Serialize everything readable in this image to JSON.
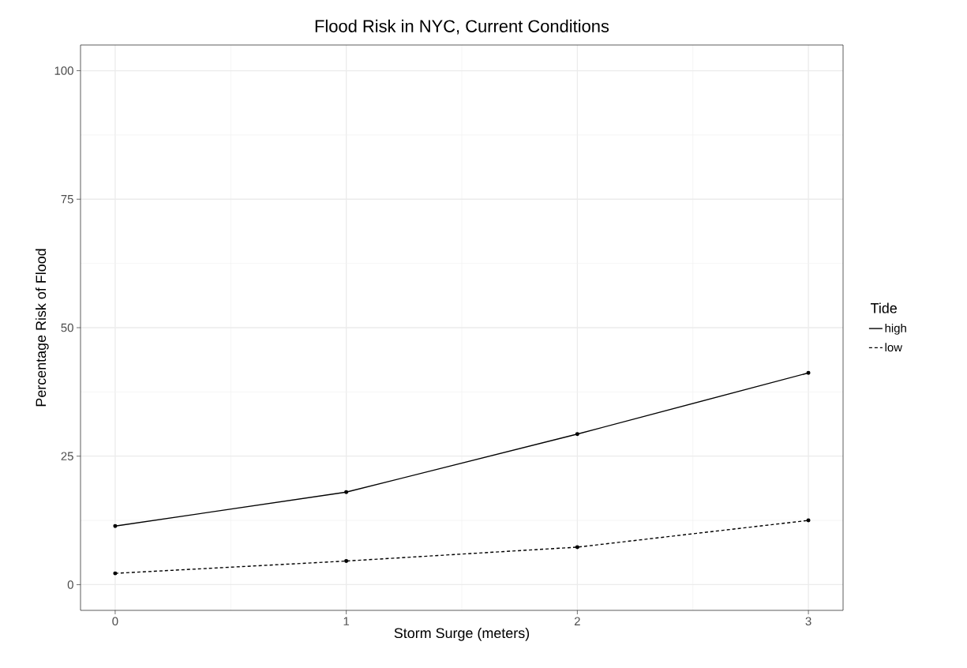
{
  "chart_data": {
    "type": "line",
    "title": "Flood Risk in NYC, Current Conditions",
    "xlabel": "Storm Surge (meters)",
    "ylabel": "Percentage Risk of Flood",
    "legend_title": "Tide",
    "x": [
      0,
      1,
      2,
      3
    ],
    "series": [
      {
        "name": "high",
        "color": "#000000",
        "values": [
          11.4,
          18.0,
          29.3,
          41.2
        ],
        "line_style": "solid"
      },
      {
        "name": "low",
        "color": "#000000",
        "values": [
          2.2,
          4.6,
          7.3,
          12.5
        ],
        "line_style": "dashed"
      }
    ],
    "xlim": [
      -0.15,
      3.15
    ],
    "ylim": [
      -5,
      105
    ],
    "xticks": [
      0,
      1,
      2,
      3
    ],
    "yticks": [
      0,
      25,
      50,
      75,
      100
    ],
    "grid": true,
    "legend": "right",
    "marker": "circle"
  }
}
